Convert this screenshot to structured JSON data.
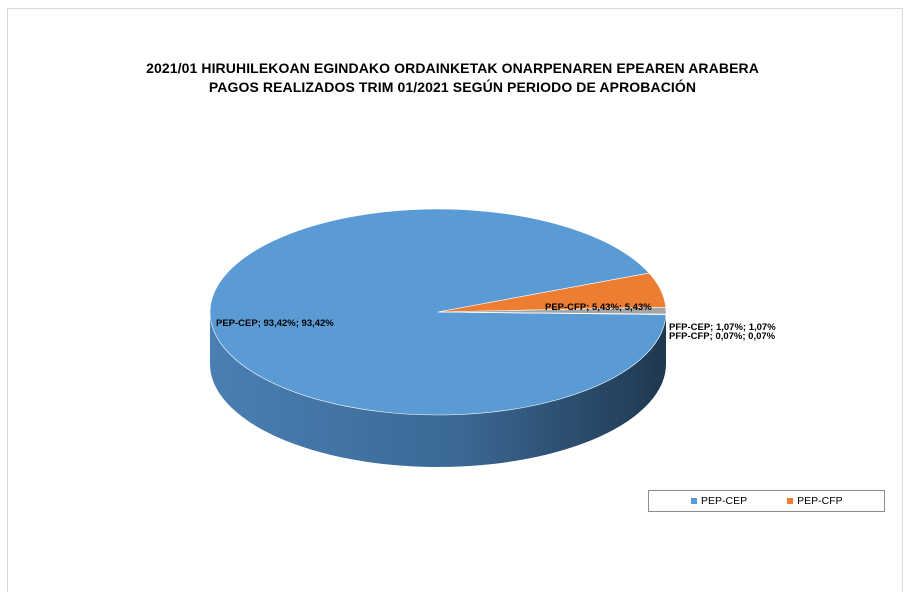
{
  "title_line1": "2021/01 HIRUHILEKOAN EGINDAKO ORDAINKETAK ONARPENAREN EPEAREN ARABERA",
  "title_line2": "PAGOS REALIZADOS TRIM 01/2021 SEGÚN PERIODO DE APROBACIÓN",
  "chart_data": {
    "type": "pie",
    "title": "2021/01 HIRUHILEKOAN EGINDAKO ORDAINKETAK ONARPENAREN EPEAREN ARABERA / PAGOS REALIZADOS TRIM 01/2021 SEGÚN PERIODO DE APROBACIÓN",
    "slices": [
      {
        "name": "PEP-CEP",
        "value": 93.42,
        "label": "PEP-CEP; 93,42%; 93,42%",
        "color": "#5b9bd5"
      },
      {
        "name": "PEP-CFP",
        "value": 5.43,
        "label": "PEP-CFP; 5,43%; 5,43%",
        "color": "#ed7d31"
      },
      {
        "name": "PFP-CEP",
        "value": 1.07,
        "label": "PFP-CEP; 1,07%; 1,07%",
        "color": "#a5a5a5"
      },
      {
        "name": "PFP-CFP",
        "value": 0.07,
        "label": "PFP-CFP; 0,07%; 0,07%",
        "color": "#ffc000"
      }
    ],
    "legend": [
      "PEP-CEP",
      "PEP-CFP"
    ],
    "legend_position": "bottom-right",
    "style": "3d"
  }
}
